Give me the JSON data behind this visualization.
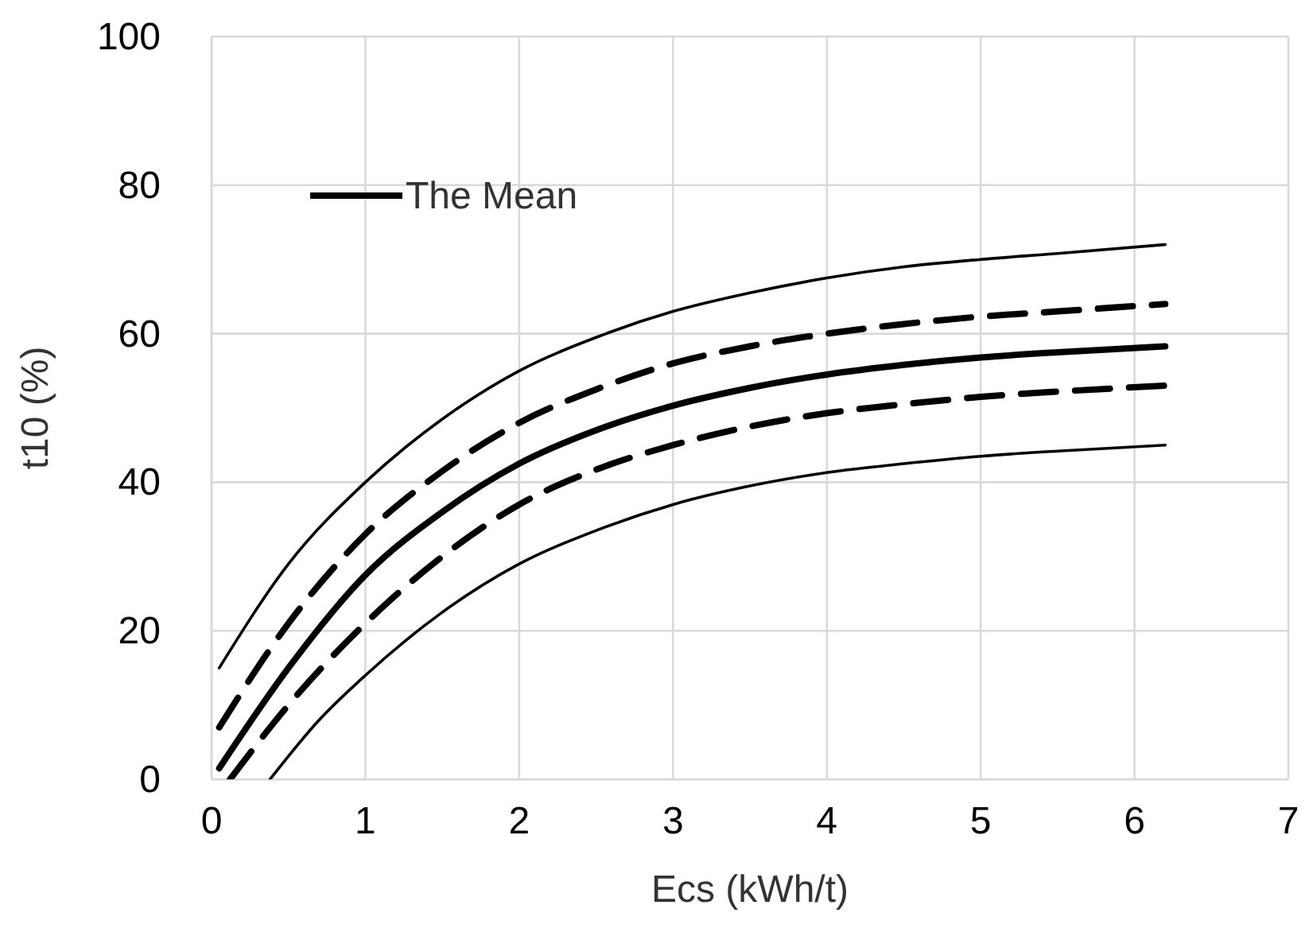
{
  "chart_data": {
    "type": "line",
    "xlabel": "Ecs (kWh/t)",
    "ylabel": "t10 (%)",
    "xlim": [
      0,
      7
    ],
    "ylim": [
      0,
      100
    ],
    "xticks": [
      0,
      1,
      2,
      3,
      4,
      5,
      6,
      7
    ],
    "yticks": [
      0,
      20,
      40,
      60,
      80,
      100
    ],
    "grid": true,
    "legend": "top left",
    "marker": "none",
    "series": [
      {
        "color": "#000000",
        "line_style": "solid",
        "x": [
          0.05,
          0.5,
          1,
          1.5,
          2,
          2.5,
          3,
          3.5,
          4,
          4.5,
          5,
          5.5,
          6.2
        ],
        "values": [
          15,
          29,
          40,
          48.5,
          55,
          59.5,
          63,
          65.5,
          67.5,
          69,
          70,
          70.8,
          72
        ]
      },
      {
        "color": "#000000",
        "line_style": "dashed",
        "x": [
          0.05,
          0.5,
          1,
          1.5,
          2,
          2.5,
          3,
          3.5,
          4,
          4.5,
          5,
          5.5,
          6.2
        ],
        "values": [
          7,
          21,
          33,
          41.5,
          48,
          52.5,
          56,
          58.3,
          60,
          61.3,
          62.3,
          63,
          64
        ]
      },
      {
        "name": "The Mean",
        "color": "#000000",
        "line_style": "solid",
        "x": [
          0.05,
          0.5,
          1,
          1.5,
          2,
          2.5,
          3,
          3.5,
          4,
          4.5,
          5,
          5.5,
          6.2
        ],
        "values": [
          1.5,
          15,
          27.5,
          36,
          42.5,
          47,
          50.3,
          52.7,
          54.5,
          55.8,
          56.8,
          57.5,
          58.3
        ]
      },
      {
        "color": "#000000",
        "line_style": "dashed",
        "x": [
          0.12,
          0.5,
          1,
          1.5,
          2,
          2.5,
          3,
          3.5,
          4,
          4.5,
          5,
          5.5,
          6.2
        ],
        "values": [
          0,
          10,
          21,
          30,
          37,
          41.7,
          45,
          47.5,
          49.3,
          50.5,
          51.5,
          52.2,
          53
        ]
      },
      {
        "color": "#000000",
        "line_style": "solid",
        "x": [
          0.38,
          0.7,
          1,
          1.5,
          2,
          2.5,
          3,
          3.5,
          4,
          4.5,
          5,
          5.5,
          6.2
        ],
        "values": [
          0,
          8,
          14,
          22.5,
          29,
          33.5,
          37,
          39.5,
          41.3,
          42.5,
          43.5,
          44.2,
          45
        ]
      }
    ]
  }
}
